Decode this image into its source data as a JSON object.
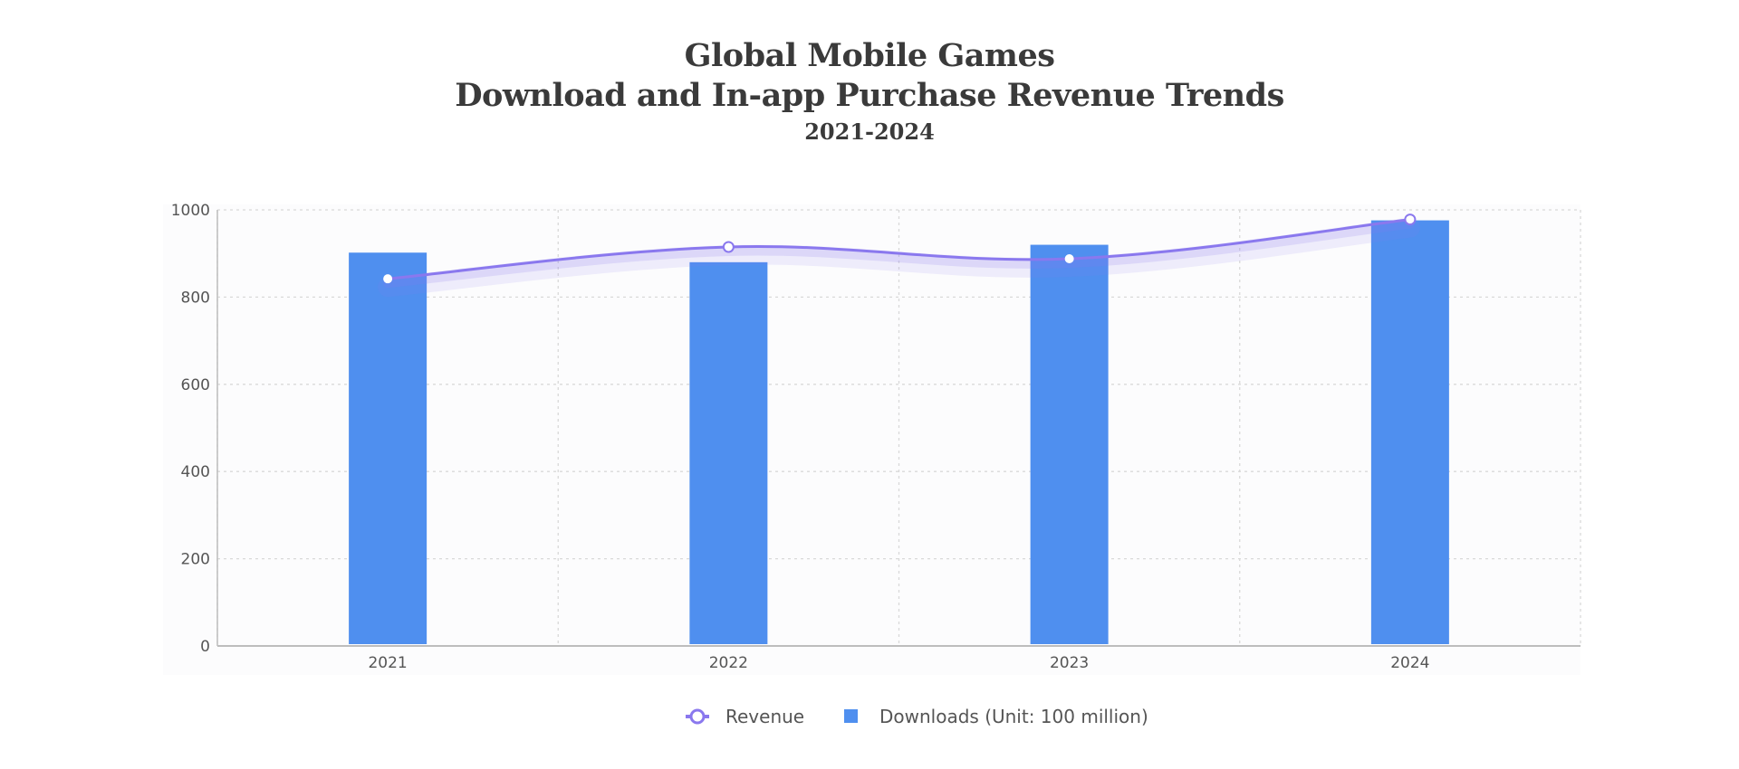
{
  "chart_data": {
    "type": "bar",
    "title": [
      "Global Mobile Games",
      "Download and In-app Purchase Revenue Trends"
    ],
    "subtitle": "2021-2024",
    "categories": [
      "2021",
      "2022",
      "2023",
      "2024"
    ],
    "series": [
      {
        "name": "Downloads (Unit: 100 million)",
        "type": "bar",
        "values": [
          902,
          880,
          920,
          976
        ],
        "color": "#4f8fef"
      },
      {
        "name": "Revenue",
        "type": "line",
        "smooth": true,
        "values": [
          842,
          915,
          888,
          978
        ],
        "color": "#8a78ee"
      }
    ],
    "ylim": [
      0,
      1000
    ],
    "yticks": [
      0,
      200,
      400,
      600,
      800,
      1000
    ],
    "ytick_labels": [
      "0",
      "200",
      "400",
      "600",
      "800",
      "1000"
    ],
    "xlabel": "",
    "ylabel": "",
    "grid": true,
    "legend_position": "bottom-center"
  }
}
